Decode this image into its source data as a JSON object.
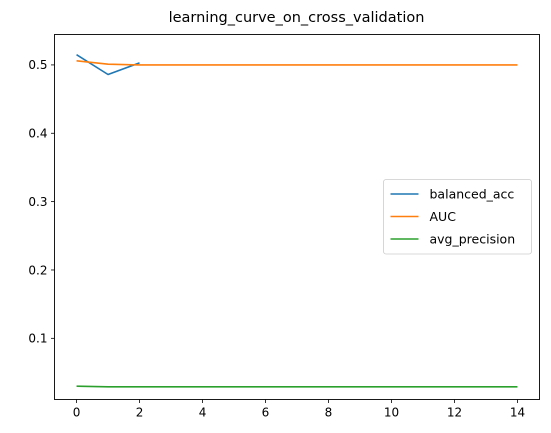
{
  "chart_data": {
    "type": "line",
    "title": "learning_curve_on_cross_validation",
    "xlabel": "",
    "ylabel": "",
    "xlim": [
      -0.7,
      14.7
    ],
    "ylim": [
      0.0105,
      0.5445
    ],
    "xticks": [
      0,
      2,
      4,
      6,
      8,
      10,
      12,
      14
    ],
    "xtick_labels": [
      "0",
      "2",
      "4",
      "6",
      "8",
      "10",
      "12",
      "14"
    ],
    "yticks": [
      0.1,
      0.2,
      0.3,
      0.4,
      0.5
    ],
    "ytick_labels": [
      "0.1",
      "0.2",
      "0.3",
      "0.4",
      "0.5"
    ],
    "grid": false,
    "legend_position": "center-right",
    "series": [
      {
        "name": "balanced_acc",
        "color": "#1f77b4",
        "x": [
          0,
          1,
          2
        ],
        "y": [
          0.515,
          0.486,
          0.503
        ]
      },
      {
        "name": "AUC",
        "color": "#ff7f0e",
        "x": [
          0,
          1,
          2,
          3,
          4,
          5,
          6,
          7,
          8,
          9,
          10,
          11,
          12,
          13,
          14
        ],
        "y": [
          0.506,
          0.501,
          0.5,
          0.5,
          0.5,
          0.5,
          0.5,
          0.5,
          0.5,
          0.5,
          0.5,
          0.5,
          0.5,
          0.5,
          0.5
        ]
      },
      {
        "name": "avg_precision",
        "color": "#2ca02c",
        "x": [
          0,
          1,
          2,
          3,
          4,
          5,
          6,
          7,
          8,
          9,
          10,
          11,
          12,
          13,
          14
        ],
        "y": [
          0.03,
          0.029,
          0.029,
          0.029,
          0.029,
          0.029,
          0.029,
          0.029,
          0.029,
          0.029,
          0.029,
          0.029,
          0.029,
          0.029,
          0.029
        ]
      }
    ]
  }
}
